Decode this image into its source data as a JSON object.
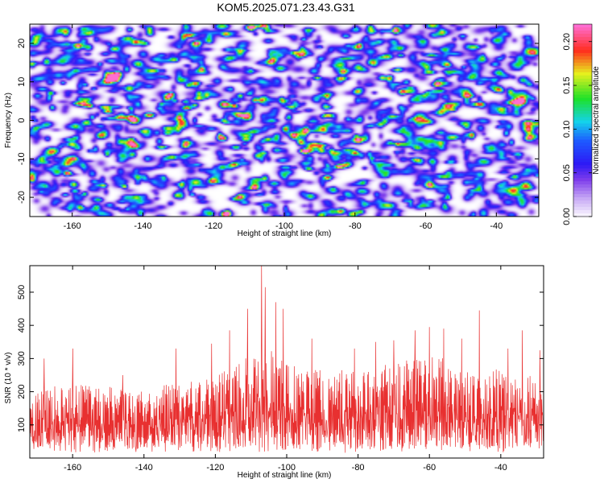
{
  "chart_data": [
    {
      "type": "heatmap",
      "title": "KOM5.2025.071.23.43.G31",
      "xlabel": "Height of straight line (km)",
      "ylabel": "Frequency (Hz)",
      "xlim": [
        -172,
        -28
      ],
      "ylim": [
        -25,
        25
      ],
      "xticks": [
        -160,
        -140,
        -120,
        -100,
        -80,
        -60,
        -40
      ],
      "yticks": [
        -20,
        -10,
        0,
        10,
        20
      ],
      "colorbar": {
        "label": "Normalized spectral amplitude",
        "range": [
          0,
          0.22
        ],
        "ticks": [
          "0.00",
          "0.05",
          "0.10",
          "0.15",
          "0.20"
        ]
      },
      "notable_peaks": [
        {
          "x": -144,
          "y": 8.5,
          "value": 0.21
        },
        {
          "x": -111,
          "y": -4.5,
          "value": 0.22
        },
        {
          "x": -114,
          "y": 5.5,
          "value": 0.13
        },
        {
          "x": -115,
          "y": 18.5,
          "value": 0.12
        },
        {
          "x": -82,
          "y": -9.5,
          "value": 0.12
        },
        {
          "x": -113,
          "y": -10.5,
          "value": 0.1
        },
        {
          "x": -121,
          "y": -16,
          "value": 0.11
        },
        {
          "x": -50,
          "y": -14,
          "value": 0.11
        },
        {
          "x": -84,
          "y": -20,
          "value": 0.1
        }
      ]
    },
    {
      "type": "line",
      "xlabel": "Height of straight line (km)",
      "ylabel": "SNR (10 * v/v)",
      "xlim": [
        -172,
        -28
      ],
      "ylim": [
        0,
        580
      ],
      "xticks": [
        -160,
        -140,
        -120,
        -100,
        -80,
        -60,
        -40
      ],
      "yticks": [
        100,
        200,
        300,
        400,
        500
      ],
      "color": "#e83030",
      "envelope": {
        "x": [
          -172,
          -160,
          -150,
          -140,
          -130,
          -120,
          -115,
          -110,
          -107,
          -104,
          -100,
          -95,
          -90,
          -85,
          -80,
          -75,
          -70,
          -65,
          -60,
          -55,
          -50,
          -45,
          -40,
          -35,
          -28
        ],
        "y": [
          205,
          225,
          215,
          205,
          230,
          245,
          285,
          325,
          345,
          320,
          290,
          270,
          265,
          275,
          265,
          285,
          300,
          295,
          315,
          300,
          260,
          255,
          275,
          255,
          250
        ]
      },
      "spikes": [
        {
          "x": -168,
          "y": 300
        },
        {
          "x": -160,
          "y": 330
        },
        {
          "x": -146,
          "y": 250
        },
        {
          "x": -131,
          "y": 330
        },
        {
          "x": -121,
          "y": 345
        },
        {
          "x": -116,
          "y": 385
        },
        {
          "x": -111,
          "y": 450
        },
        {
          "x": -107,
          "y": 580
        },
        {
          "x": -106,
          "y": 515
        },
        {
          "x": -103,
          "y": 470
        },
        {
          "x": -101,
          "y": 450
        },
        {
          "x": -93,
          "y": 360
        },
        {
          "x": -81,
          "y": 330
        },
        {
          "x": -75,
          "y": 350
        },
        {
          "x": -70,
          "y": 355
        },
        {
          "x": -64,
          "y": 385
        },
        {
          "x": -60,
          "y": 395
        },
        {
          "x": -56,
          "y": 390
        },
        {
          "x": -51,
          "y": 360
        },
        {
          "x": -46,
          "y": 445
        },
        {
          "x": -38,
          "y": 330
        },
        {
          "x": -34,
          "y": 385
        },
        {
          "x": -29,
          "y": 325
        }
      ]
    }
  ]
}
